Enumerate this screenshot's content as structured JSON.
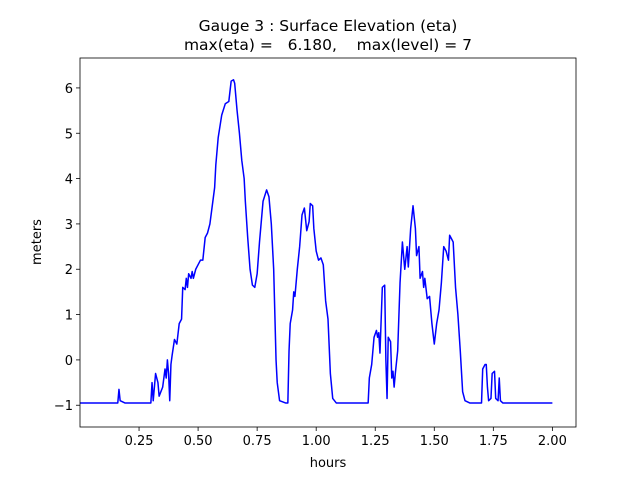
{
  "chart_data": {
    "type": "line",
    "title": "Gauge 3 : Surface Elevation (eta)",
    "subtitle": "max(eta) =   6.180,    max(level) = 7",
    "xlabel": "hours",
    "ylabel": "meters",
    "color": "#0000ff",
    "x": [
      0.0,
      0.16,
      0.165,
      0.17,
      0.19,
      0.3,
      0.305,
      0.31,
      0.32,
      0.33,
      0.335,
      0.35,
      0.36,
      0.365,
      0.37,
      0.375,
      0.38,
      0.385,
      0.39,
      0.4,
      0.41,
      0.42,
      0.43,
      0.435,
      0.445,
      0.45,
      0.455,
      0.46,
      0.47,
      0.475,
      0.48,
      0.49,
      0.5,
      0.51,
      0.52,
      0.53,
      0.54,
      0.55,
      0.56,
      0.57,
      0.575,
      0.585,
      0.6,
      0.615,
      0.63,
      0.64,
      0.65,
      0.655,
      0.665,
      0.675,
      0.685,
      0.695,
      0.7,
      0.71,
      0.72,
      0.73,
      0.74,
      0.75,
      0.76,
      0.775,
      0.79,
      0.8,
      0.81,
      0.82,
      0.825,
      0.83,
      0.835,
      0.845,
      0.87,
      0.88,
      0.885,
      0.89,
      0.9,
      0.905,
      0.91,
      0.92,
      0.93,
      0.94,
      0.95,
      0.96,
      0.97,
      0.975,
      0.985,
      0.99,
      1.0,
      1.01,
      1.02,
      1.03,
      1.04,
      1.05,
      1.055,
      1.06,
      1.07,
      1.085,
      1.22,
      1.225,
      1.235,
      1.245,
      1.255,
      1.26,
      1.265,
      1.27,
      1.28,
      1.29,
      1.295,
      1.3,
      1.305,
      1.315,
      1.32,
      1.325,
      1.33,
      1.335,
      1.345,
      1.355,
      1.365,
      1.37,
      1.375,
      1.385,
      1.39,
      1.4,
      1.41,
      1.42,
      1.425,
      1.435,
      1.44,
      1.45,
      1.455,
      1.46,
      1.47,
      1.48,
      1.49,
      1.5,
      1.51,
      1.52,
      1.53,
      1.54,
      1.55,
      1.56,
      1.565,
      1.575,
      1.58,
      1.59,
      1.6,
      1.61,
      1.62,
      1.63,
      1.65,
      1.7,
      1.705,
      1.715,
      1.72,
      1.725,
      1.73,
      1.74,
      1.745,
      1.755,
      1.76,
      1.77,
      1.775,
      1.78,
      1.79,
      2.0
    ],
    "values": [
      -0.95,
      -0.95,
      -0.65,
      -0.9,
      -0.95,
      -0.95,
      -0.5,
      -0.9,
      -0.3,
      -0.5,
      -0.8,
      -0.6,
      -0.2,
      -0.4,
      0,
      -0.3,
      -0.9,
      -0.1,
      0.1,
      0.45,
      0.35,
      0.8,
      0.9,
      1.6,
      1.55,
      1.8,
      1.6,
      1.9,
      1.8,
      1.95,
      1.8,
      2.0,
      2.1,
      2.2,
      2.2,
      2.7,
      2.8,
      3.0,
      3.4,
      3.8,
      4.3,
      4.9,
      5.4,
      5.65,
      5.7,
      6.15,
      6.18,
      6.1,
      5.5,
      5.0,
      4.4,
      4.0,
      3.5,
      2.7,
      2.0,
      1.65,
      1.6,
      1.9,
      2.6,
      3.5,
      3.75,
      3.6,
      3.0,
      2.0,
      1.0,
      0,
      -0.5,
      -0.9,
      -0.95,
      -0.95,
      0.2,
      0.8,
      1.1,
      1.5,
      1.4,
      2.0,
      2.5,
      3.2,
      3.35,
      2.85,
      3.05,
      3.45,
      3.4,
      2.9,
      2.4,
      2.2,
      2.25,
      2.1,
      1.3,
      0.9,
      0.3,
      -0.3,
      -0.85,
      -0.95,
      -0.95,
      -0.4,
      -0.1,
      0.5,
      0.65,
      0.5,
      0.6,
      0.15,
      1.6,
      1.65,
      0,
      -0.85,
      0.5,
      0.4,
      -0.4,
      -0.25,
      -0.6,
      -0.3,
      0.2,
      1.7,
      2.6,
      2.3,
      2.0,
      2.5,
      2.05,
      2.9,
      3.4,
      2.9,
      2.3,
      2.5,
      1.8,
      1.95,
      1.6,
      1.8,
      1.35,
      1.4,
      0.8,
      0.35,
      0.8,
      1.1,
      1.7,
      2.5,
      2.4,
      2.2,
      2.75,
      2.65,
      2.6,
      1.6,
      1.0,
      0.2,
      -0.7,
      -0.9,
      -0.95,
      -0.95,
      -0.2,
      -0.1,
      -0.1,
      -0.6,
      -0.9,
      -0.85,
      -0.3,
      -0.25,
      -0.85,
      -0.9,
      -0.4,
      -0.9,
      -0.95,
      -0.95
    ],
    "xlim": [
      0.0,
      2.1
    ],
    "ylim": [
      -1.48,
      6.66
    ],
    "xticks": [
      0.25,
      {
        "value": 0.5,
        "label": "0.50"
      },
      0.75,
      {
        "value": 1.0,
        "label": "1.00"
      },
      1.25,
      {
        "value": 1.5,
        "label": "1.50"
      },
      1.75,
      {
        "value": 2.0,
        "label": "2.00"
      }
    ],
    "yticks": [
      {
        "value": -1,
        "label": "−1"
      },
      0,
      1,
      2,
      3,
      4,
      5,
      6
    ]
  }
}
